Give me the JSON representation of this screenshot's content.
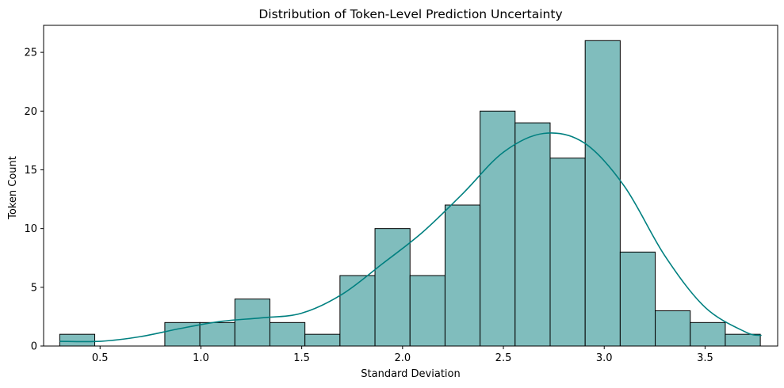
{
  "chart_data": {
    "type": "bar",
    "subtype": "histogram",
    "title": "Distribution of Token-Level Prediction Uncertainty",
    "xlabel": "Standard Deviation",
    "ylabel": "Token Count",
    "xlim": [
      0.22,
      3.86
    ],
    "ylim": [
      0,
      27.3
    ],
    "xticks": [
      "0.5",
      "1.0",
      "1.5",
      "2.0",
      "2.5",
      "3.0",
      "3.5"
    ],
    "yticks": [
      "0",
      "5",
      "10",
      "15",
      "20",
      "25"
    ],
    "bin_start": 0.3,
    "bin_width": 0.1737,
    "counts": [
      1,
      0,
      0,
      2,
      2,
      4,
      2,
      1,
      6,
      10,
      6,
      12,
      20,
      19,
      16,
      26,
      8,
      3,
      2,
      1
    ],
    "bar_color": "#80bdbd",
    "edge_color": "#000000",
    "kde": {
      "name": "kde",
      "color": "#008080",
      "points": [
        [
          0.3,
          0.4
        ],
        [
          0.5,
          0.4
        ],
        [
          0.7,
          0.8
        ],
        [
          0.9,
          1.5
        ],
        [
          1.1,
          2.1
        ],
        [
          1.3,
          2.4
        ],
        [
          1.5,
          2.8
        ],
        [
          1.7,
          4.4
        ],
        [
          1.9,
          7.0
        ],
        [
          2.1,
          9.7
        ],
        [
          2.3,
          13.0
        ],
        [
          2.5,
          16.5
        ],
        [
          2.7,
          18.1
        ],
        [
          2.9,
          17.3
        ],
        [
          3.1,
          13.6
        ],
        [
          3.3,
          7.7
        ],
        [
          3.5,
          3.3
        ],
        [
          3.7,
          1.2
        ],
        [
          3.78,
          0.9
        ]
      ]
    },
    "grid": false,
    "legend": "none"
  }
}
